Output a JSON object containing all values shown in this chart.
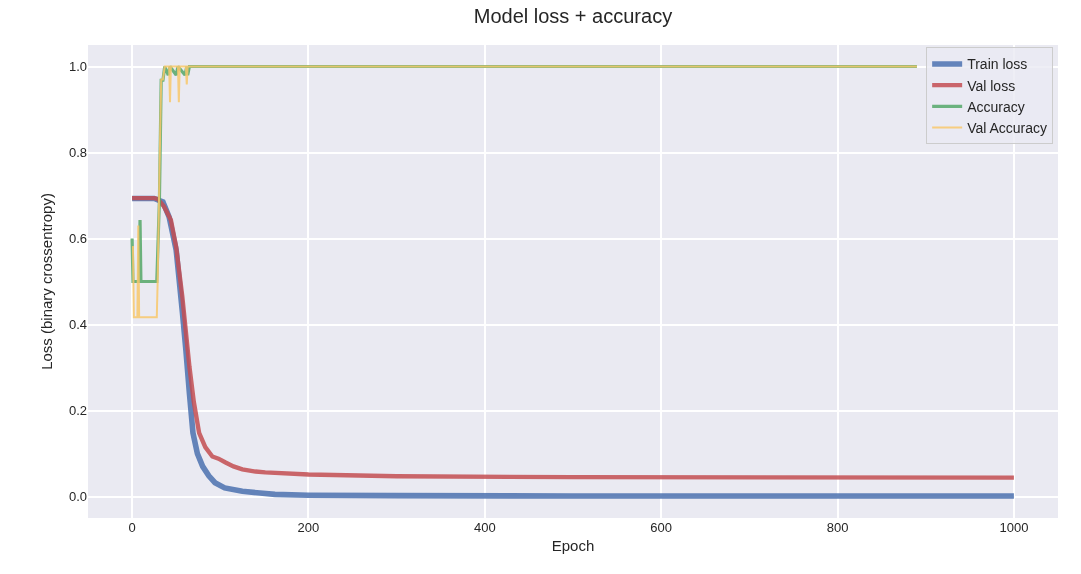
{
  "chart_data": {
    "type": "line",
    "title": "Model loss + accuracy",
    "xlabel": "Epoch",
    "ylabel": "Loss (binary crossentropy)",
    "xlim": [
      -50,
      1050
    ],
    "ylim": [
      -0.05,
      1.05
    ],
    "xticks": [
      0,
      200,
      400,
      600,
      800,
      1000
    ],
    "yticks": [
      {
        "value": 0,
        "label": "0.0"
      },
      0.2,
      0.4,
      0.6,
      0.8,
      {
        "value": 1,
        "label": "1.0"
      }
    ],
    "grid": true,
    "legend": "top right",
    "series": [
      {
        "name": "Train loss",
        "color": "#4c72b0",
        "x": [
          0,
          25,
          35,
          42,
          50,
          57,
          61,
          65,
          69,
          74,
          80,
          87,
          94,
          105,
          125,
          145,
          162,
          200,
          300,
          500,
          1000
        ],
        "values": [
          0.693,
          0.693,
          0.685,
          0.65,
          0.573,
          0.43,
          0.341,
          0.24,
          0.148,
          0.1,
          0.07,
          0.048,
          0.032,
          0.02,
          0.012,
          0.008,
          0.005,
          0.003,
          0.002,
          0.001,
          0.001
        ]
      },
      {
        "name": "Val loss",
        "color": "#c44e52",
        "x": [
          0,
          25,
          29,
          36,
          44,
          50,
          57,
          65,
          70,
          76,
          83,
          91,
          98,
          106,
          115,
          125,
          140,
          151,
          200,
          300,
          500,
          1000
        ],
        "values": [
          0.694,
          0.694,
          0.692,
          0.675,
          0.643,
          0.58,
          0.464,
          0.302,
          0.22,
          0.148,
          0.115,
          0.093,
          0.088,
          0.079,
          0.07,
          0.063,
          0.058,
          0.056,
          0.051,
          0.047,
          0.045,
          0.044
        ]
      },
      {
        "name": "Accuracy",
        "color": "#55a868",
        "x": [
          0,
          1,
          8,
          9,
          10,
          28,
          31,
          33,
          35,
          37,
          41,
          43,
          50,
          52,
          60,
          62,
          63,
          65,
          890
        ],
        "values": [
          0.6,
          0.5,
          0.5,
          0.643,
          0.5,
          0.5,
          0.69,
          0.968,
          0.968,
          1.0,
          0.98,
          1.0,
          0.98,
          1.0,
          0.98,
          1.0,
          0.98,
          1.0,
          1.0
        ]
      },
      {
        "name": "Val Accuracy",
        "color": "#f9c86b",
        "x": [
          0,
          1,
          2,
          6,
          7,
          8,
          28,
          29,
          31,
          33,
          35,
          37,
          42,
          43,
          44,
          48,
          52,
          53,
          54,
          58,
          61,
          62,
          63,
          890
        ],
        "values": [
          0.58,
          0.58,
          0.417,
          0.417,
          0.63,
          0.417,
          0.417,
          0.5,
          0.75,
          0.97,
          0.97,
          1.0,
          1.0,
          0.917,
          1.0,
          1.0,
          1.0,
          0.917,
          1.0,
          1.0,
          1.0,
          0.958,
          1.0,
          1.0
        ]
      }
    ]
  }
}
